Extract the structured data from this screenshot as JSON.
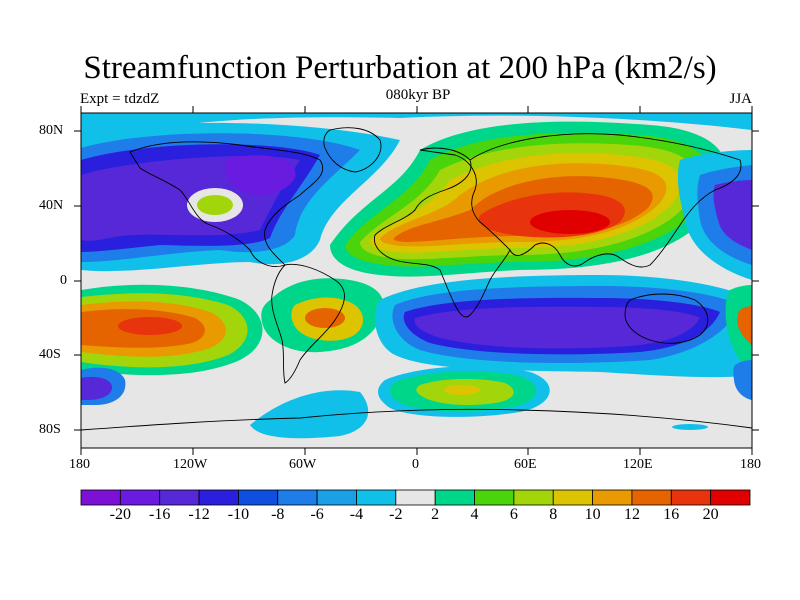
{
  "title": "Streamfunction Perturbation at 200 hPa (km2/s)",
  "left_label": "Expt = tdzdZ",
  "center_label": "080kyr BP",
  "right_label": "JJA",
  "lat_ticks": [
    "80N",
    "40N",
    "0",
    "40S",
    "80S"
  ],
  "lon_ticks": [
    "180",
    "120W",
    "60W",
    "0",
    "60E",
    "120E",
    "180"
  ],
  "colorbar": {
    "labels": [
      "-20",
      "-16",
      "-12",
      "-10",
      "-8",
      "-6",
      "-4",
      "-2",
      "2",
      "4",
      "6",
      "8",
      "10",
      "12",
      "16",
      "20"
    ],
    "colors": [
      "#7d10d6",
      "#6a1be0",
      "#5628d8",
      "#2a1fdd",
      "#0f4fe0",
      "#1e7de8",
      "#1aa0e6",
      "#10c0e8",
      "#e6e6e6",
      "#00d68a",
      "#49d40c",
      "#a3d60a",
      "#dcc400",
      "#e89a00",
      "#e56400",
      "#e8340c",
      "#e00000"
    ]
  },
  "regions": [
    {
      "name": "n-america-low",
      "color": "#5628d8"
    },
    {
      "name": "arctic-blue",
      "color": "#10c0e8"
    },
    {
      "name": "asia-high",
      "color": "#e56400"
    },
    {
      "name": "asia-core",
      "color": "#e8340c"
    },
    {
      "name": "s-indian-low",
      "color": "#5628d8"
    },
    {
      "name": "s-pacific-high",
      "color": "#e56400"
    },
    {
      "name": "antarctic-blue",
      "color": "#10c0e8"
    }
  ]
}
